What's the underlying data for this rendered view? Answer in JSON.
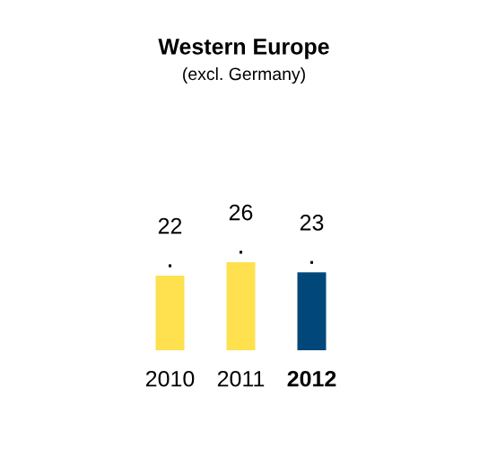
{
  "chart_data": {
    "type": "bar",
    "title": "Western Europe",
    "subtitle": "(excl. Germany)",
    "categories": [
      "2010",
      "2011",
      "2012"
    ],
    "values": [
      22,
      26,
      23
    ],
    "colors": [
      "#ffe04f",
      "#ffe04f",
      "#02477a"
    ],
    "data_labels": true
  }
}
